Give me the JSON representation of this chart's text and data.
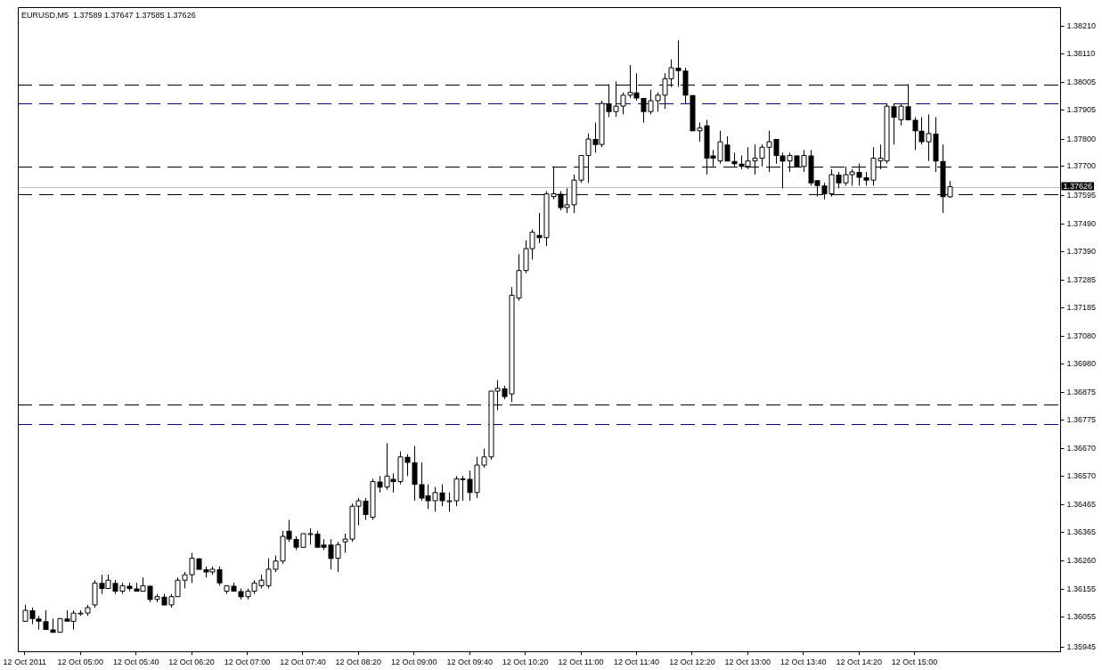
{
  "chart_data": {
    "type": "candlestick",
    "title": "EURUSD,M5  1.37589 1.37647 1.37585 1.37626",
    "x": [
      "2011-10-12T04:20",
      "2011-10-12T04:25",
      "2011-10-12T04:30",
      "2011-10-12T04:35",
      "2011-10-12T04:40",
      "2011-10-12T04:45",
      "2011-10-12T04:50",
      "2011-10-12T04:55",
      "2011-10-12T05:00",
      "2011-10-12T05:05",
      "2011-10-12T05:10",
      "2011-10-12T05:15",
      "2011-10-12T05:20",
      "2011-10-12T05:25",
      "2011-10-12T05:30",
      "2011-10-12T05:35",
      "2011-10-12T05:40",
      "2011-10-12T05:45",
      "2011-10-12T05:50",
      "2011-10-12T05:55",
      "2011-10-12T06:00",
      "2011-10-12T06:05",
      "2011-10-12T06:10",
      "2011-10-12T06:15",
      "2011-10-12T06:20",
      "2011-10-12T06:25",
      "2011-10-12T06:30",
      "2011-10-12T06:35",
      "2011-10-12T06:40",
      "2011-10-12T06:45",
      "2011-10-12T06:50",
      "2011-10-12T06:55",
      "2011-10-12T07:00",
      "2011-10-12T07:05",
      "2011-10-12T07:10",
      "2011-10-12T07:15",
      "2011-10-12T07:20",
      "2011-10-12T07:25",
      "2011-10-12T07:30",
      "2011-10-12T07:35",
      "2011-10-12T07:40",
      "2011-10-12T07:45",
      "2011-10-12T07:50",
      "2011-10-12T07:55",
      "2011-10-12T08:00",
      "2011-10-12T08:05",
      "2011-10-12T08:10",
      "2011-10-12T08:15",
      "2011-10-12T08:20",
      "2011-10-12T08:25",
      "2011-10-12T08:30",
      "2011-10-12T08:35",
      "2011-10-12T08:40",
      "2011-10-12T08:45",
      "2011-10-12T08:50",
      "2011-10-12T08:55",
      "2011-10-12T09:00",
      "2011-10-12T09:05",
      "2011-10-12T09:10",
      "2011-10-12T09:15",
      "2011-10-12T09:20",
      "2011-10-12T09:25",
      "2011-10-12T09:30",
      "2011-10-12T09:35",
      "2011-10-12T09:40",
      "2011-10-12T09:45",
      "2011-10-12T09:50",
      "2011-10-12T09:55",
      "2011-10-12T10:00",
      "2011-10-12T10:05",
      "2011-10-12T10:10",
      "2011-10-12T10:15",
      "2011-10-12T10:20",
      "2011-10-12T10:25",
      "2011-10-12T10:30",
      "2011-10-12T10:35",
      "2011-10-12T10:40",
      "2011-10-12T10:45",
      "2011-10-12T10:50",
      "2011-10-12T10:55",
      "2011-10-12T11:00",
      "2011-10-12T11:05",
      "2011-10-12T11:10",
      "2011-10-12T11:15",
      "2011-10-12T11:20",
      "2011-10-12T11:25",
      "2011-10-12T11:30",
      "2011-10-12T11:35",
      "2011-10-12T11:40",
      "2011-10-12T11:45",
      "2011-10-12T11:50",
      "2011-10-12T11:55",
      "2011-10-12T12:00",
      "2011-10-12T12:05",
      "2011-10-12T12:10",
      "2011-10-12T12:15",
      "2011-10-12T12:20",
      "2011-10-12T12:25",
      "2011-10-12T12:30",
      "2011-10-12T12:35",
      "2011-10-12T12:40",
      "2011-10-12T12:45",
      "2011-10-12T12:50",
      "2011-10-12T12:55",
      "2011-10-12T13:00",
      "2011-10-12T13:05",
      "2011-10-12T13:10",
      "2011-10-12T13:15",
      "2011-10-12T13:20",
      "2011-10-12T13:25",
      "2011-10-12T13:30",
      "2011-10-12T13:35",
      "2011-10-12T13:40",
      "2011-10-12T13:45",
      "2011-10-12T13:50",
      "2011-10-12T13:55",
      "2011-10-12T14:00",
      "2011-10-12T14:05",
      "2011-10-12T14:10",
      "2011-10-12T14:15",
      "2011-10-12T14:20",
      "2011-10-12T14:25",
      "2011-10-12T14:30",
      "2011-10-12T14:35",
      "2011-10-12T14:40",
      "2011-10-12T14:45",
      "2011-10-12T14:50",
      "2011-10-12T14:55",
      "2011-10-12T15:00",
      "2011-10-12T15:05",
      "2011-10-12T15:10",
      "2011-10-12T15:15",
      "2011-10-12T15:20",
      "2011-10-12T15:25"
    ],
    "ohlc": [
      [
        1.3604,
        1.361,
        1.3604,
        1.3608
      ],
      [
        1.3608,
        1.3609,
        1.3603,
        1.3605
      ],
      [
        1.3605,
        1.3606,
        1.3601,
        1.3604
      ],
      [
        1.3604,
        1.3608,
        1.3601,
        1.3601
      ],
      [
        1.3601,
        1.3605,
        1.36,
        1.36
      ],
      [
        1.36,
        1.3605,
        1.36,
        1.3605
      ],
      [
        1.3605,
        1.3608,
        1.3604,
        1.3604
      ],
      [
        1.3604,
        1.3608,
        1.3601,
        1.3607
      ],
      [
        1.3607,
        1.3608,
        1.3606,
        1.3607
      ],
      [
        1.3607,
        1.361,
        1.3606,
        1.3609
      ],
      [
        1.361,
        1.3619,
        1.3609,
        1.3618
      ],
      [
        1.3618,
        1.3621,
        1.3614,
        1.3616
      ],
      [
        1.3616,
        1.3621,
        1.3616,
        1.3619
      ],
      [
        1.3618,
        1.3619,
        1.3614,
        1.3615
      ],
      [
        1.3615,
        1.3618,
        1.3614,
        1.3617
      ],
      [
        1.3617,
        1.3618,
        1.3615,
        1.3616
      ],
      [
        1.3616,
        1.3618,
        1.3615,
        1.3615
      ],
      [
        1.3615,
        1.362,
        1.3615,
        1.3617
      ],
      [
        1.3617,
        1.3617,
        1.3611,
        1.3612
      ],
      [
        1.3612,
        1.3614,
        1.3611,
        1.3613
      ],
      [
        1.3613,
        1.3614,
        1.361,
        1.361
      ],
      [
        1.361,
        1.3614,
        1.3609,
        1.3613
      ],
      [
        1.3613,
        1.362,
        1.3613,
        1.3619
      ],
      [
        1.3619,
        1.3622,
        1.3616,
        1.3621
      ],
      [
        1.3621,
        1.3629,
        1.3618,
        1.3627
      ],
      [
        1.3627,
        1.3627,
        1.3623,
        1.3623
      ],
      [
        1.3623,
        1.3624,
        1.362,
        1.3622
      ],
      [
        1.3622,
        1.3624,
        1.3621,
        1.3623
      ],
      [
        1.3623,
        1.3624,
        1.3617,
        1.3618
      ],
      [
        1.3615,
        1.3617,
        1.3614,
        1.3617
      ],
      [
        1.3617,
        1.3618,
        1.3615,
        1.3615
      ],
      [
        1.3615,
        1.3616,
        1.3612,
        1.3613
      ],
      [
        1.3613,
        1.3616,
        1.3612,
        1.3615
      ],
      [
        1.3615,
        1.3619,
        1.3614,
        1.3618
      ],
      [
        1.3617,
        1.3621,
        1.3616,
        1.3619
      ],
      [
        1.3617,
        1.3627,
        1.3616,
        1.3623
      ],
      [
        1.3623,
        1.3628,
        1.3622,
        1.3626
      ],
      [
        1.3626,
        1.3637,
        1.3625,
        1.3635
      ],
      [
        1.3637,
        1.3641,
        1.3633,
        1.3634
      ],
      [
        1.3634,
        1.3635,
        1.363,
        1.3631
      ],
      [
        1.3631,
        1.3636,
        1.3631,
        1.3636
      ],
      [
        1.3636,
        1.3638,
        1.3632,
        1.3636
      ],
      [
        1.3636,
        1.3637,
        1.3631,
        1.3631
      ],
      [
        1.3632,
        1.3634,
        1.363,
        1.3631
      ],
      [
        1.3632,
        1.3634,
        1.3623,
        1.3627
      ],
      [
        1.3627,
        1.3633,
        1.3622,
        1.3632
      ],
      [
        1.3633,
        1.3636,
        1.3629,
        1.3634
      ],
      [
        1.3634,
        1.3647,
        1.3633,
        1.3646
      ],
      [
        1.3646,
        1.3649,
        1.3639,
        1.3648
      ],
      [
        1.3648,
        1.3649,
        1.3641,
        1.3643
      ],
      [
        1.3642,
        1.3656,
        1.3641,
        1.3655
      ],
      [
        1.3655,
        1.3657,
        1.3651,
        1.3653
      ],
      [
        1.3653,
        1.3669,
        1.3652,
        1.3657
      ],
      [
        1.3656,
        1.3658,
        1.3651,
        1.3655
      ],
      [
        1.3655,
        1.3666,
        1.3654,
        1.3664
      ],
      [
        1.3664,
        1.3665,
        1.3657,
        1.3662
      ],
      [
        1.3662,
        1.3668,
        1.3648,
        1.3654
      ],
      [
        1.3654,
        1.3662,
        1.3648,
        1.3649
      ],
      [
        1.365,
        1.3654,
        1.3645,
        1.3648
      ],
      [
        1.3648,
        1.3653,
        1.3644,
        1.3651
      ],
      [
        1.3651,
        1.3654,
        1.3646,
        1.3648
      ],
      [
        1.3648,
        1.3651,
        1.3644,
        1.3648
      ],
      [
        1.3648,
        1.3657,
        1.3646,
        1.3656
      ],
      [
        1.3656,
        1.3657,
        1.3648,
        1.3656
      ],
      [
        1.3656,
        1.3659,
        1.3648,
        1.3651
      ],
      [
        1.3651,
        1.3664,
        1.3649,
        1.3661
      ],
      [
        1.3661,
        1.3667,
        1.366,
        1.3664
      ],
      [
        1.3664,
        1.3688,
        1.3663,
        1.3688
      ],
      [
        1.3688,
        1.3692,
        1.3681,
        1.3689
      ],
      [
        1.3689,
        1.369,
        1.3685,
        1.3686
      ],
      [
        1.3687,
        1.3726,
        1.3684,
        1.3723
      ],
      [
        1.3722,
        1.3738,
        1.3721,
        1.3732
      ],
      [
        1.3732,
        1.3743,
        1.3731,
        1.374
      ],
      [
        1.374,
        1.3747,
        1.3736,
        1.3746
      ],
      [
        1.3745,
        1.3753,
        1.3742,
        1.3744
      ],
      [
        1.3744,
        1.3761,
        1.3741,
        1.376
      ],
      [
        1.3759,
        1.377,
        1.3758,
        1.376
      ],
      [
        1.376,
        1.3761,
        1.3754,
        1.3755
      ],
      [
        1.3755,
        1.3762,
        1.3753,
        1.3756
      ],
      [
        1.3756,
        1.3767,
        1.3753,
        1.3765
      ],
      [
        1.3765,
        1.3774,
        1.3764,
        1.3774
      ],
      [
        1.3774,
        1.3782,
        1.3764,
        1.378
      ],
      [
        1.378,
        1.3786,
        1.3775,
        1.3778
      ],
      [
        1.3778,
        1.3794,
        1.3777,
        1.3793
      ],
      [
        1.3793,
        1.38,
        1.3788,
        1.379
      ],
      [
        1.379,
        1.3801,
        1.3788,
        1.3792
      ],
      [
        1.3792,
        1.3797,
        1.3789,
        1.3796
      ],
      [
        1.3796,
        1.3807,
        1.3795,
        1.3797
      ],
      [
        1.3797,
        1.3804,
        1.3794,
        1.3795
      ],
      [
        1.3795,
        1.3795,
        1.3786,
        1.379
      ],
      [
        1.379,
        1.3798,
        1.3789,
        1.3794
      ],
      [
        1.3794,
        1.3797,
        1.379,
        1.3796
      ],
      [
        1.3796,
        1.3804,
        1.3791,
        1.3802
      ],
      [
        1.3802,
        1.3809,
        1.3799,
        1.3806
      ],
      [
        1.3806,
        1.3816,
        1.3799,
        1.3805
      ],
      [
        1.3805,
        1.3806,
        1.3793,
        1.3796
      ],
      [
        1.3796,
        1.3796,
        1.3783,
        1.3783
      ],
      [
        1.3783,
        1.3786,
        1.3779,
        1.3784
      ],
      [
        1.3785,
        1.3787,
        1.3767,
        1.3773
      ],
      [
        1.3774,
        1.3776,
        1.377,
        1.3773
      ],
      [
        1.3772,
        1.3783,
        1.3771,
        1.3779
      ],
      [
        1.3778,
        1.3781,
        1.3772,
        1.3772
      ],
      [
        1.3772,
        1.3775,
        1.377,
        1.3771
      ],
      [
        1.3771,
        1.3774,
        1.3769,
        1.377
      ],
      [
        1.377,
        1.3777,
        1.3769,
        1.3772
      ],
      [
        1.3772,
        1.3778,
        1.3767,
        1.3773
      ],
      [
        1.3773,
        1.3778,
        1.377,
        1.3777
      ],
      [
        1.3777,
        1.3783,
        1.3768,
        1.3779
      ],
      [
        1.378,
        1.378,
        1.3771,
        1.3774
      ],
      [
        1.3774,
        1.3775,
        1.3762,
        1.3772
      ],
      [
        1.3772,
        1.3775,
        1.3768,
        1.3774
      ],
      [
        1.3774,
        1.3774,
        1.377,
        1.377
      ],
      [
        1.377,
        1.3776,
        1.3768,
        1.3774
      ],
      [
        1.3774,
        1.3776,
        1.3763,
        1.3764
      ],
      [
        1.3765,
        1.3765,
        1.3759,
        1.3763
      ],
      [
        1.3763,
        1.3764,
        1.3758,
        1.376
      ],
      [
        1.376,
        1.3769,
        1.3759,
        1.3767
      ],
      [
        1.3767,
        1.3768,
        1.3762,
        1.3764
      ],
      [
        1.3764,
        1.377,
        1.3763,
        1.3767
      ],
      [
        1.3767,
        1.3769,
        1.3763,
        1.3768
      ],
      [
        1.3768,
        1.3771,
        1.3763,
        1.3766
      ],
      [
        1.3766,
        1.3768,
        1.3763,
        1.3765
      ],
      [
        1.3765,
        1.3777,
        1.3763,
        1.3773
      ],
      [
        1.3772,
        1.3778,
        1.3769,
        1.3773
      ],
      [
        1.3772,
        1.3793,
        1.3771,
        1.3792
      ],
      [
        1.3792,
        1.3793,
        1.3778,
        1.3788
      ],
      [
        1.3787,
        1.3793,
        1.3785,
        1.3792
      ],
      [
        1.3792,
        1.38,
        1.3787,
        1.3787
      ],
      [
        1.3787,
        1.3788,
        1.3776,
        1.3783
      ],
      [
        1.3783,
        1.3788,
        1.3778,
        1.3779
      ],
      [
        1.3779,
        1.3789,
        1.3772,
        1.3782
      ],
      [
        1.3782,
        1.3788,
        1.3768,
        1.3772
      ],
      [
        1.3772,
        1.3778,
        1.3753,
        1.3759
      ],
      [
        1.37589,
        1.37647,
        1.37585,
        1.37626
      ]
    ],
    "xlim": [
      "2011-10-12T04:15",
      "2011-10-12T16:45"
    ],
    "xticks": [
      {
        "value": "2011-10-12T04:20",
        "label": "12 Oct 2011"
      },
      {
        "value": "2011-10-12T05:00",
        "label": "12 Oct 05:00"
      },
      {
        "value": "2011-10-12T05:40",
        "label": "12 Oct 05:40"
      },
      {
        "value": "2011-10-12T06:20",
        "label": "12 Oct 06:20"
      },
      {
        "value": "2011-10-12T07:00",
        "label": "12 Oct 07:00"
      },
      {
        "value": "2011-10-12T07:40",
        "label": "12 Oct 07:40"
      },
      {
        "value": "2011-10-12T08:20",
        "label": "12 Oct 08:20"
      },
      {
        "value": "2011-10-12T09:00",
        "label": "12 Oct 09:00"
      },
      {
        "value": "2011-10-12T09:40",
        "label": "12 Oct 09:40"
      },
      {
        "value": "2011-10-12T10:20",
        "label": "12 Oct 10:20"
      },
      {
        "value": "2011-10-12T11:00",
        "label": "12 Oct 11:00"
      },
      {
        "value": "2011-10-12T11:40",
        "label": "12 Oct 11:40"
      },
      {
        "value": "2011-10-12T12:20",
        "label": "12 Oct 12:20"
      },
      {
        "value": "2011-10-12T13:00",
        "label": "12 Oct 13:00"
      },
      {
        "value": "2011-10-12T13:40",
        "label": "12 Oct 13:40"
      },
      {
        "value": "2011-10-12T14:20",
        "label": "12 Oct 14:20"
      },
      {
        "value": "2011-10-12T15:00",
        "label": "12 Oct 15:00"
      }
    ],
    "ylim": [
      1.3593,
      1.3828
    ],
    "yticks": [
      {
        "value": 1.3821,
        "label": "1.38210"
      },
      {
        "value": 1.3811,
        "label": "1.38110"
      },
      1.38005,
      1.37905,
      {
        "value": 1.378,
        "label": "1.37800"
      },
      {
        "value": 1.377,
        "label": "1.37700"
      },
      1.37595,
      {
        "value": 1.3749,
        "label": "1.37490"
      },
      {
        "value": 1.3739,
        "label": "1.37390"
      },
      1.37285,
      1.37185,
      {
        "value": 1.3708,
        "label": "1.37080"
      },
      {
        "value": 1.3698,
        "label": "1.36980"
      },
      1.36875,
      1.36775,
      {
        "value": 1.3667,
        "label": "1.36670"
      },
      {
        "value": 1.3657,
        "label": "1.36570"
      },
      1.36465,
      1.36365,
      {
        "value": 1.3626,
        "label": "1.36260"
      },
      1.36155,
      1.36055,
      1.35945
    ],
    "ref_lines": [
      {
        "axis": "y",
        "value": 1.38,
        "color": "#000000",
        "line_style": "dashed"
      },
      {
        "axis": "y",
        "value": 1.3793,
        "color": "#000080",
        "line_style": "dashed"
      },
      {
        "axis": "y",
        "value": 1.377,
        "color": "#000000",
        "line_style": "dashed"
      },
      {
        "axis": "y",
        "value": 1.376,
        "color": "#000000",
        "line_style": "dashed"
      },
      {
        "axis": "y",
        "value": 1.3683,
        "color": "#000000",
        "line_style": "dashed"
      },
      {
        "axis": "y",
        "value": 1.3676,
        "color": "#000080",
        "line_style": "dashed"
      },
      {
        "axis": "y",
        "value": 1.37626,
        "label": "1.37626",
        "color": "#c0c0c0",
        "line_style": "solid"
      }
    ]
  }
}
